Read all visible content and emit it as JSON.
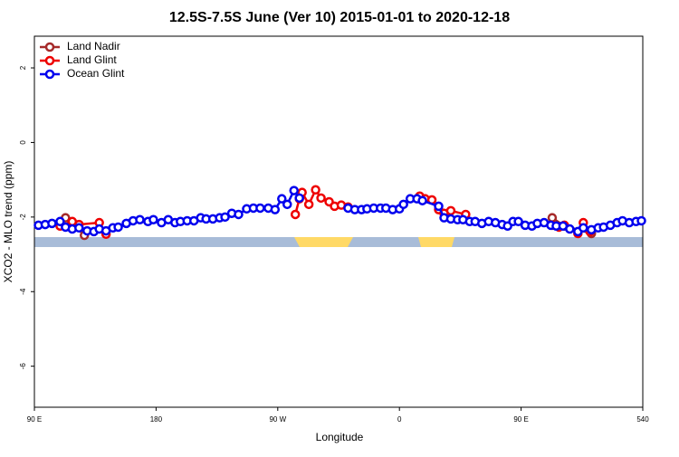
{
  "chart_data": {
    "type": "line",
    "title": "12.5S-7.5S June (Ver 10)   2015-01-01 to 2020-12-18",
    "xlabel": "Longitude",
    "ylabel": "XCO2 - MLO trend (ppm)",
    "xlim": [
      90,
      540
    ],
    "xticks": [
      {
        "value": 90,
        "label": "90 E"
      },
      180,
      {
        "value": 270,
        "label": "90 W"
      },
      {
        "value": 360,
        "label": "0"
      },
      {
        "value": 450,
        "label": "90 E"
      },
      540
    ],
    "ylim": [
      -7.1,
      2.85
    ],
    "yticks": [
      2,
      0,
      -2,
      -4,
      -6
    ],
    "grid": false,
    "legend": "upper left",
    "series": [
      {
        "name": "Land Nadir",
        "color": "#a52a2a",
        "x": [
          113,
          118,
          127,
          null,
          473,
          482,
          502
        ],
        "values": [
          -2.02,
          -2.17,
          -2.49,
          null,
          -2.02,
          -2.24,
          -2.44
        ]
      },
      {
        "name": "Land Glint",
        "color": "#ee0000",
        "x": [
          109,
          118,
          123,
          138,
          143,
          null,
          283,
          286,
          288,
          293,
          298,
          302,
          308,
          312,
          317,
          322,
          null,
          375,
          379,
          384,
          389,
          393,
          398,
          409,
          null,
          473,
          478,
          482,
          492,
          496,
          501
        ],
        "values": [
          -2.24,
          -2.12,
          -2.2,
          -2.15,
          -2.46,
          null,
          -1.93,
          -1.51,
          -1.34,
          -1.66,
          -1.27,
          -1.49,
          -1.59,
          -1.71,
          -1.68,
          -1.73,
          null,
          -1.44,
          -1.51,
          -1.54,
          -1.8,
          -1.9,
          -1.83,
          -1.93,
          null,
          -2.22,
          -2.27,
          -2.22,
          -2.44,
          -2.15,
          -2.39
        ]
      },
      {
        "name": "Ocean Glint",
        "color": "#0000ee",
        "x": [
          93,
          98,
          103,
          109,
          113,
          118,
          123,
          129,
          134,
          138,
          143,
          148,
          152,
          158,
          163,
          168,
          174,
          178,
          184,
          189,
          194,
          198,
          203,
          208,
          213,
          217,
          222,
          227,
          231,
          236,
          241,
          247,
          252,
          257,
          263,
          268,
          273,
          277,
          282,
          286,
          null,
          322,
          327,
          332,
          336,
          341,
          346,
          350,
          355,
          360,
          363,
          368,
          373,
          377,
          389,
          393,
          398,
          403,
          407,
          412,
          416,
          421,
          426,
          431,
          436,
          440,
          444,
          448,
          453,
          458,
          462,
          467,
          472,
          476,
          481,
          486,
          492,
          496,
          502,
          507,
          511,
          516,
          521,
          525,
          530,
          535,
          539
        ],
        "values": [
          -2.22,
          -2.2,
          -2.17,
          -2.12,
          -2.27,
          -2.32,
          -2.29,
          -2.37,
          -2.39,
          -2.32,
          -2.37,
          -2.29,
          -2.27,
          -2.17,
          -2.1,
          -2.07,
          -2.12,
          -2.07,
          -2.15,
          -2.07,
          -2.15,
          -2.12,
          -2.1,
          -2.1,
          -2.02,
          -2.05,
          -2.05,
          -2.02,
          -2,
          -1.9,
          -1.93,
          -1.78,
          -1.76,
          -1.76,
          -1.76,
          -1.8,
          -1.51,
          -1.66,
          -1.29,
          -1.49,
          null,
          -1.76,
          -1.8,
          -1.8,
          -1.78,
          -1.76,
          -1.76,
          -1.76,
          -1.8,
          -1.78,
          -1.66,
          -1.51,
          -1.51,
          -1.56,
          -1.71,
          -2.02,
          -2.05,
          -2.07,
          -2.07,
          -2.12,
          -2.12,
          -2.17,
          -2.12,
          -2.15,
          -2.2,
          -2.24,
          -2.12,
          -2.12,
          -2.22,
          -2.24,
          -2.17,
          -2.15,
          -2.22,
          -2.24,
          -2.24,
          -2.32,
          -2.39,
          -2.29,
          -2.34,
          -2.29,
          -2.27,
          -2.22,
          -2.15,
          -2.1,
          -2.15,
          -2.12,
          -2.1
        ]
      }
    ]
  }
}
